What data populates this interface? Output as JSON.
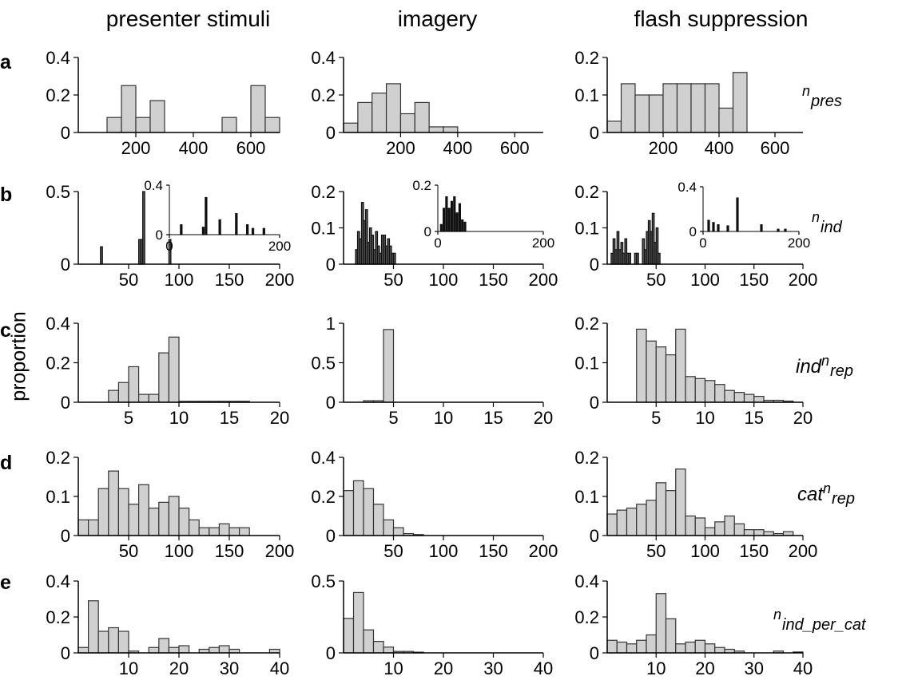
{
  "column_titles": [
    "presenter stimuli",
    "imagery",
    "flash suppression"
  ],
  "row_letters": [
    "a",
    "b",
    "c",
    "d",
    "e"
  ],
  "y_axis_label": "proportion",
  "row_variable_labels": [
    {
      "prefix": "",
      "n": "n",
      "sub": "pres"
    },
    {
      "prefix": "",
      "n": "n",
      "sub": "ind"
    },
    {
      "prefix": "ind",
      "n": "n",
      "sub": "rep"
    },
    {
      "prefix": "cat",
      "n": "n",
      "sub": "rep"
    },
    {
      "prefix": "",
      "n": "n",
      "sub": "ind_per_cat"
    }
  ],
  "colors": {
    "bar_fill": "#d0d0d0",
    "bar_stroke": "#333333",
    "axis": "#000000",
    "dark_bar": "#111111"
  },
  "chart_data": [
    {
      "panel": "a",
      "column": "presenter stimuli",
      "type": "bar",
      "xlim": [
        0,
        700
      ],
      "ylim": [
        0,
        0.4
      ],
      "xticks": [
        200,
        400,
        600
      ],
      "yticks": [
        0,
        0.2,
        0.4
      ],
      "yticklabels": [
        "0",
        "0.2",
        "0.4"
      ],
      "bin_width": 50,
      "bins": [
        100,
        150,
        200,
        250,
        300,
        350,
        400,
        450,
        500,
        550,
        600,
        650
      ],
      "values": [
        0.08,
        0.25,
        0.08,
        0.17,
        0,
        0,
        0,
        0,
        0.08,
        0,
        0.25,
        0.08
      ]
    },
    {
      "panel": "a",
      "column": "imagery",
      "type": "bar",
      "xlim": [
        0,
        700
      ],
      "ylim": [
        0,
        0.4
      ],
      "xticks": [
        200,
        400,
        600
      ],
      "yticks": [
        0,
        0.2,
        0.4
      ],
      "yticklabels": [
        "0",
        "0.2",
        "0.4"
      ],
      "bin_width": 50,
      "bins": [
        0,
        50,
        100,
        150,
        200,
        250,
        300,
        350
      ],
      "values": [
        0.05,
        0.16,
        0.21,
        0.26,
        0.1,
        0.16,
        0.03,
        0.03
      ]
    },
    {
      "panel": "a",
      "column": "flash suppression",
      "type": "bar",
      "xlim": [
        0,
        700
      ],
      "ylim": [
        0,
        0.2
      ],
      "xticks": [
        200,
        400,
        600
      ],
      "yticks": [
        0,
        0.1,
        0.2
      ],
      "yticklabels": [
        "0",
        "0.1",
        "0.2"
      ],
      "bin_width": 50,
      "bins": [
        0,
        50,
        100,
        150,
        200,
        250,
        300,
        350,
        400,
        450
      ],
      "values": [
        0.03,
        0.13,
        0.1,
        0.1,
        0.13,
        0.13,
        0.13,
        0.13,
        0.065,
        0.16
      ]
    },
    {
      "panel": "b",
      "column": "presenter stimuli",
      "type": "bar",
      "xlim": [
        0,
        200
      ],
      "ylim": [
        0,
        0.5
      ],
      "xticks": [
        50,
        100,
        150,
        200
      ],
      "yticks": [
        0,
        0.5
      ],
      "yticklabels": [
        "0",
        "0.5"
      ],
      "bin_width": 2,
      "bins": [
        22,
        60,
        62,
        64,
        90
      ],
      "values": [
        0.12,
        0.17,
        0.17,
        0.5,
        0.17
      ],
      "inset": {
        "xlim": [
          0,
          200
        ],
        "ylim": [
          0,
          0.4
        ],
        "xticks": [
          0,
          200
        ],
        "yticks": [
          0,
          0.4
        ],
        "yticklabels": [
          "0",
          "0.4"
        ],
        "bins": [
          20,
          60,
          65,
          90,
          120,
          140,
          150,
          170
        ],
        "values": [
          0.08,
          0.06,
          0.3,
          0.12,
          0.17,
          0.08,
          0.05,
          0.05
        ]
      }
    },
    {
      "panel": "b",
      "column": "imagery",
      "type": "bar",
      "xlim": [
        0,
        200
      ],
      "ylim": [
        0,
        0.2
      ],
      "xticks": [
        50,
        100,
        150,
        200
      ],
      "yticks": [
        0,
        0.1,
        0.2
      ],
      "yticklabels": [
        "0",
        "0.1",
        "0.2"
      ],
      "bin_width": 2,
      "bins": [
        12,
        14,
        16,
        18,
        20,
        22,
        24,
        26,
        28,
        30,
        32,
        34,
        36,
        38,
        40,
        42,
        44,
        46,
        48,
        50
      ],
      "values": [
        0.04,
        0.09,
        0.07,
        0.17,
        0.12,
        0.15,
        0.06,
        0.1,
        0.08,
        0.04,
        0.09,
        0.05,
        0.03,
        0.08,
        0.08,
        0.05,
        0.07,
        0.05,
        0.03,
        0.03
      ],
      "inset": {
        "xlim": [
          0,
          200
        ],
        "ylim": [
          0,
          0.2
        ],
        "xticks": [
          0,
          200
        ],
        "yticks": [
          0,
          0.2
        ],
        "yticklabels": [
          "0",
          "0.2"
        ],
        "bins": [
          5,
          10,
          15,
          20,
          25,
          30,
          35,
          40,
          45,
          50
        ],
        "values": [
          0.03,
          0.1,
          0.15,
          0.1,
          0.13,
          0.15,
          0.08,
          0.12,
          0.05,
          0.04
        ]
      }
    },
    {
      "panel": "b",
      "column": "flash suppression",
      "type": "bar",
      "xlim": [
        0,
        200
      ],
      "ylim": [
        0,
        0.2
      ],
      "xticks": [
        50,
        100,
        150,
        200
      ],
      "yticks": [
        0,
        0.1,
        0.2
      ],
      "yticklabels": [
        "0",
        "0.1",
        "0.2"
      ],
      "bin_width": 2,
      "bins": [
        4,
        6,
        8,
        10,
        12,
        14,
        16,
        18,
        20,
        22,
        28,
        30,
        36,
        38,
        40,
        42,
        44,
        46,
        48,
        50,
        52
      ],
      "values": [
        0.03,
        0.07,
        0.04,
        0.09,
        0.04,
        0.06,
        0.03,
        0.07,
        0.03,
        0.03,
        0.03,
        0.03,
        0.07,
        0.04,
        0.09,
        0.12,
        0.09,
        0.14,
        0.06,
        0.1,
        0.03
      ],
      "inset": {
        "xlim": [
          0,
          200
        ],
        "ylim": [
          0,
          0.4
        ],
        "xticks": [
          0,
          200
        ],
        "yticks": [
          0,
          0.4
        ],
        "yticklabels": [
          "0",
          "0.4"
        ],
        "bins": [
          10,
          20,
          30,
          50,
          70,
          120,
          155,
          170
        ],
        "values": [
          0.1,
          0.08,
          0.06,
          0.05,
          0.3,
          0.06,
          0.02,
          0.02
        ]
      }
    },
    {
      "panel": "c",
      "column": "presenter stimuli",
      "type": "bar",
      "xlim": [
        0,
        20
      ],
      "ylim": [
        0,
        0.4
      ],
      "xticks": [
        5,
        10,
        15,
        20
      ],
      "yticks": [
        0,
        0.2,
        0.4
      ],
      "yticklabels": [
        "0",
        "0.2",
        "0.4"
      ],
      "bin_width": 1,
      "bins": [
        3,
        4,
        5,
        6,
        7,
        8,
        9,
        10,
        11,
        12,
        13,
        14,
        15,
        16
      ],
      "values": [
        0.06,
        0.1,
        0.18,
        0.04,
        0.04,
        0.25,
        0.33,
        0.005,
        0.005,
        0.005,
        0.005,
        0.005,
        0.005,
        0.005
      ]
    },
    {
      "panel": "c",
      "column": "imagery",
      "type": "bar",
      "xlim": [
        0,
        20
      ],
      "ylim": [
        0,
        1
      ],
      "xticks": [
        5,
        10,
        15,
        20
      ],
      "yticks": [
        0,
        0.5,
        1
      ],
      "yticklabels": [
        "0",
        "0.5",
        "1"
      ],
      "bin_width": 1,
      "bins": [
        2,
        3,
        4
      ],
      "values": [
        0.02,
        0.02,
        0.92
      ]
    },
    {
      "panel": "c",
      "column": "flash suppression",
      "type": "bar",
      "xlim": [
        0,
        20
      ],
      "ylim": [
        0,
        0.2
      ],
      "xticks": [
        5,
        10,
        15,
        20
      ],
      "yticks": [
        0,
        0.1,
        0.2
      ],
      "yticklabels": [
        "0",
        "0.1",
        "0.2"
      ],
      "bin_width": 1,
      "bins": [
        3,
        4,
        5,
        6,
        7,
        8,
        9,
        10,
        11,
        12,
        13,
        14,
        15,
        16,
        17,
        18
      ],
      "values": [
        0.185,
        0.155,
        0.14,
        0.12,
        0.185,
        0.065,
        0.06,
        0.055,
        0.045,
        0.03,
        0.025,
        0.02,
        0.015,
        0.005,
        0.005,
        0.003
      ]
    },
    {
      "panel": "d",
      "column": "presenter stimuli",
      "type": "bar",
      "xlim": [
        0,
        200
      ],
      "ylim": [
        0,
        0.2
      ],
      "xticks": [
        50,
        100,
        150,
        200
      ],
      "yticks": [
        0,
        0.1,
        0.2
      ],
      "yticklabels": [
        "0",
        "0.1",
        "0.2"
      ],
      "bin_width": 10,
      "bins": [
        0,
        10,
        20,
        30,
        40,
        50,
        60,
        70,
        80,
        90,
        100,
        110,
        120,
        130,
        140,
        150,
        160
      ],
      "values": [
        0.04,
        0.04,
        0.12,
        0.165,
        0.12,
        0.08,
        0.13,
        0.07,
        0.085,
        0.1,
        0.07,
        0.04,
        0.02,
        0.02,
        0.03,
        0.02,
        0.02
      ]
    },
    {
      "panel": "d",
      "column": "imagery",
      "type": "bar",
      "xlim": [
        0,
        200
      ],
      "ylim": [
        0,
        0.4
      ],
      "xticks": [
        50,
        100,
        150,
        200
      ],
      "yticks": [
        0,
        0.2,
        0.4
      ],
      "yticklabels": [
        "0",
        "0.2",
        "0.4"
      ],
      "bin_width": 10,
      "bins": [
        0,
        10,
        20,
        30,
        40,
        50,
        60,
        70
      ],
      "values": [
        0.23,
        0.28,
        0.24,
        0.16,
        0.08,
        0.04,
        0.01,
        0.005
      ]
    },
    {
      "panel": "d",
      "column": "flash suppression",
      "type": "bar",
      "xlim": [
        0,
        200
      ],
      "ylim": [
        0,
        0.2
      ],
      "xticks": [
        50,
        100,
        150,
        200
      ],
      "yticks": [
        0,
        0.1,
        0.2
      ],
      "yticklabels": [
        "0",
        "0.1",
        "0.2"
      ],
      "bin_width": 10,
      "bins": [
        0,
        10,
        20,
        30,
        40,
        50,
        60,
        70,
        80,
        90,
        100,
        110,
        120,
        130,
        140,
        150,
        160,
        170,
        180
      ],
      "values": [
        0.055,
        0.065,
        0.07,
        0.08,
        0.09,
        0.135,
        0.115,
        0.17,
        0.05,
        0.045,
        0.02,
        0.035,
        0.05,
        0.03,
        0.015,
        0.015,
        0.01,
        0.005,
        0.01
      ]
    },
    {
      "panel": "e",
      "column": "presenter stimuli",
      "type": "bar",
      "xlim": [
        0,
        40
      ],
      "ylim": [
        0,
        0.4
      ],
      "xticks": [
        10,
        20,
        30,
        40
      ],
      "yticks": [
        0,
        0.2,
        0.4
      ],
      "yticklabels": [
        "0",
        "0.2",
        "0.4"
      ],
      "bin_width": 2,
      "bins": [
        0,
        2,
        4,
        6,
        8,
        10,
        14,
        16,
        18,
        20,
        24,
        26,
        28,
        30,
        38
      ],
      "values": [
        0.03,
        0.29,
        0.12,
        0.14,
        0.12,
        0.01,
        0.03,
        0.08,
        0.03,
        0.04,
        0.02,
        0.03,
        0.04,
        0.02,
        0.02
      ]
    },
    {
      "panel": "e",
      "column": "imagery",
      "type": "bar",
      "xlim": [
        0,
        40
      ],
      "ylim": [
        0,
        0.5
      ],
      "xticks": [
        10,
        20,
        30,
        40
      ],
      "yticks": [
        0,
        0.5
      ],
      "yticklabels": [
        "0",
        "0.5"
      ],
      "bin_width": 2,
      "bins": [
        0,
        2,
        4,
        6,
        8,
        10,
        12,
        14
      ],
      "values": [
        0.24,
        0.42,
        0.16,
        0.08,
        0.04,
        0.01,
        0.01,
        0.005
      ]
    },
    {
      "panel": "e",
      "column": "flash suppression",
      "type": "bar",
      "xlim": [
        0,
        40
      ],
      "ylim": [
        0,
        0.4
      ],
      "xticks": [
        10,
        20,
        30,
        40
      ],
      "yticks": [
        0,
        0.2,
        0.4
      ],
      "yticklabels": [
        "0",
        "0.2",
        "0.4"
      ],
      "bin_width": 2,
      "bins": [
        0,
        2,
        4,
        6,
        8,
        10,
        12,
        14,
        16,
        18,
        20,
        22,
        24,
        26,
        34,
        38
      ],
      "values": [
        0.07,
        0.06,
        0.05,
        0.07,
        0.1,
        0.33,
        0.19,
        0.05,
        0.06,
        0.07,
        0.05,
        0.03,
        0.02,
        0.01,
        0.01,
        0.005
      ]
    }
  ]
}
